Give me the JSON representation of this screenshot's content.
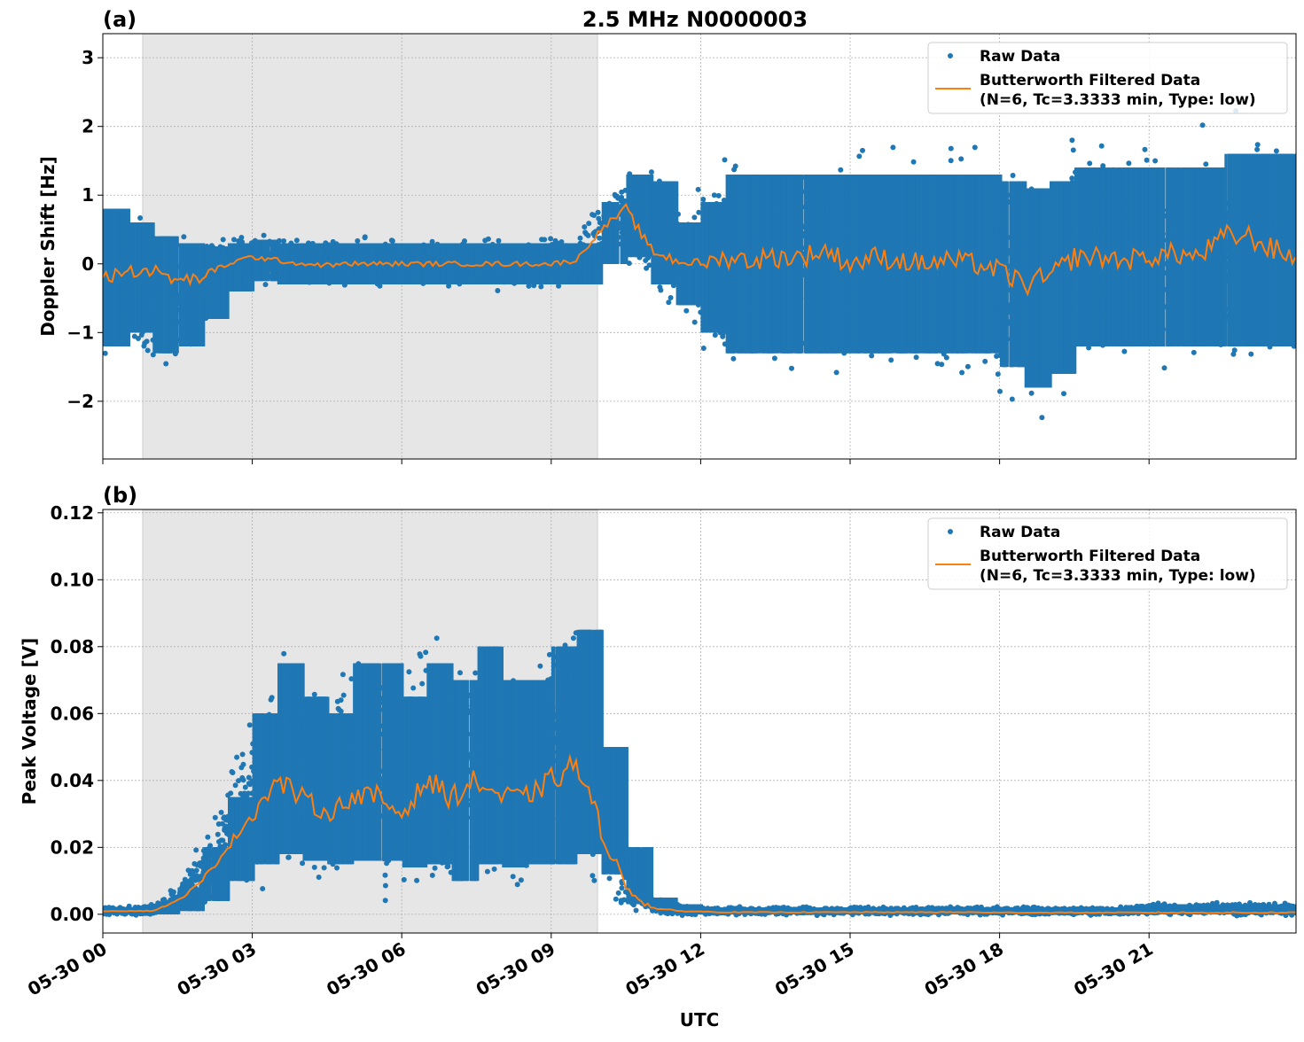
{
  "chart_data": [
    {
      "type": "scatter",
      "panel_label": "(a)",
      "title": "2.5 MHz N0000003",
      "xlabel": "",
      "ylabel": "Doppler Shift [Hz]",
      "xlim_hours": [
        0,
        23.95
      ],
      "ylim": [
        -2.84,
        3.35
      ],
      "yticks": [
        -2,
        -1,
        0,
        1,
        2,
        3
      ],
      "ytick_labels": [
        "−2",
        "−1",
        "0",
        "1",
        "2",
        "3"
      ],
      "grid": true,
      "shaded_interval_hours": [
        0.8,
        9.93
      ],
      "legend_position": "top-right",
      "legend": [
        "Raw Data",
        "Butterworth Filtered Data",
        "(N=6, Tc=3.3333 min, Type: low)"
      ],
      "x_hours": [
        0,
        0.5,
        1,
        1.5,
        2,
        2.5,
        3,
        3.5,
        4,
        4.5,
        5,
        5.5,
        6,
        6.5,
        7,
        7.5,
        8,
        8.5,
        9,
        9.5,
        10,
        10.5,
        11,
        11.5,
        12,
        12.5,
        13,
        13.5,
        14,
        14.5,
        15,
        15.5,
        16,
        16.5,
        17,
        17.5,
        18,
        18.5,
        19,
        19.5,
        20,
        20.5,
        21,
        21.5,
        22,
        22.5,
        23,
        23.5,
        24
      ],
      "series": [
        {
          "name": "Butterworth Filtered Data",
          "style": "line",
          "color": "#ff7f0e",
          "values": [
            -0.2,
            -0.1,
            -0.1,
            -0.25,
            -0.2,
            0,
            0.1,
            0.05,
            0,
            -0.02,
            0,
            0,
            0,
            0,
            0,
            0,
            0,
            0,
            0,
            0.05,
            0.5,
            0.8,
            0.2,
            0.05,
            0,
            0.1,
            0.05,
            0.1,
            0.1,
            0.2,
            0,
            0.1,
            0.05,
            0,
            0.05,
            0,
            -0.1,
            -0.3,
            -0.2,
            0.1,
            0.1,
            0.05,
            0.1,
            0.15,
            0.1,
            0.4,
            0.4,
            0.2,
            0.1
          ]
        },
        {
          "name": "Raw Data",
          "style": "points",
          "color": "#1f77b4",
          "band_low": [
            -1.2,
            -1,
            -1.3,
            -1.2,
            -0.8,
            -0.4,
            -0.25,
            -0.3,
            -0.3,
            -0.3,
            -0.3,
            -0.3,
            -0.3,
            -0.3,
            -0.3,
            -0.3,
            -0.3,
            -0.3,
            -0.3,
            -0.3,
            0,
            0.1,
            -0.3,
            -0.6,
            -1,
            -1.3,
            -1.3,
            -1.3,
            -1.3,
            -1.3,
            -1.3,
            -1.3,
            -1.3,
            -1.3,
            -1.3,
            -1.3,
            -1.5,
            -1.8,
            -1.6,
            -1.2,
            -1.2,
            -1.2,
            -1.2,
            -1.2,
            -1.2,
            -1.2,
            -1.2,
            -1.2,
            -1.2
          ],
          "band_high": [
            0.8,
            0.6,
            0.4,
            0.3,
            0.25,
            0.3,
            0.35,
            0.3,
            0.3,
            0.3,
            0.3,
            0.3,
            0.3,
            0.3,
            0.3,
            0.3,
            0.3,
            0.3,
            0.3,
            0.3,
            0.9,
            1.3,
            1.2,
            0.6,
            0.9,
            1.3,
            1.3,
            1.3,
            1.3,
            1.3,
            1.3,
            1.3,
            1.3,
            1.3,
            1.3,
            1.3,
            1.2,
            1.1,
            1.2,
            1.4,
            1.4,
            1.4,
            1.4,
            1.4,
            1.4,
            1.6,
            1.6,
            1.6,
            1.6
          ]
        }
      ]
    },
    {
      "type": "scatter",
      "panel_label": "(b)",
      "xlabel": "UTC",
      "ylabel": "Peak Voltage [V]",
      "xlim_hours": [
        0,
        23.95
      ],
      "ylim": [
        -0.0056,
        0.121
      ],
      "yticks": [
        0,
        0.02,
        0.04,
        0.06,
        0.08,
        0.1,
        0.12
      ],
      "ytick_labels": [
        "0.00",
        "0.02",
        "0.04",
        "0.06",
        "0.08",
        "0.10",
        "0.12"
      ],
      "xtick_hours": [
        0,
        3,
        6,
        9,
        12,
        15,
        18,
        21
      ],
      "xtick_labels": [
        "05-30 00",
        "05-30 03",
        "05-30 06",
        "05-30 09",
        "05-30 12",
        "05-30 15",
        "05-30 18",
        "05-30 21"
      ],
      "grid": true,
      "shaded_interval_hours": [
        0.8,
        9.93
      ],
      "legend_position": "top-right",
      "legend": [
        "Raw Data",
        "Butterworth Filtered Data",
        "(N=6, Tc=3.3333 min, Type: low)"
      ],
      "x_hours": [
        0,
        0.5,
        1,
        1.5,
        2,
        2.5,
        3,
        3.5,
        4,
        4.5,
        5,
        5.5,
        6,
        6.5,
        7,
        7.5,
        8,
        8.5,
        9,
        9.5,
        10,
        10.5,
        11,
        11.5,
        12,
        12.5,
        13,
        13.5,
        14,
        14.5,
        15,
        15.5,
        16,
        16.5,
        17,
        17.5,
        18,
        18.5,
        19,
        19.5,
        20,
        20.5,
        21,
        21.5,
        22,
        22.5,
        23,
        23.5,
        24
      ],
      "series": [
        {
          "name": "Butterworth Filtered Data",
          "style": "line",
          "color": "#ff7f0e",
          "values": [
            0.001,
            0.001,
            0.001,
            0.004,
            0.01,
            0.02,
            0.03,
            0.04,
            0.035,
            0.03,
            0.035,
            0.035,
            0.03,
            0.04,
            0.035,
            0.04,
            0.035,
            0.035,
            0.04,
            0.045,
            0.025,
            0.008,
            0.002,
            0.001,
            0.0008,
            0.0006,
            0.0006,
            0.0006,
            0.0006,
            0.0006,
            0.0006,
            0.0006,
            0.0006,
            0.0006,
            0.0006,
            0.0006,
            0.0005,
            0.0005,
            0.0005,
            0.0005,
            0.0005,
            0.0005,
            0.0005,
            0.0005,
            0.0005,
            0.0005,
            0.0005,
            0.0005,
            0.0005
          ]
        },
        {
          "name": "Raw Data",
          "style": "points",
          "color": "#1f77b4",
          "band_low": [
            0,
            0,
            0,
            0.001,
            0.004,
            0.01,
            0.015,
            0.018,
            0.016,
            0.015,
            0.016,
            0.016,
            0.014,
            0.015,
            0.01,
            0.015,
            0.014,
            0.015,
            0.015,
            0.018,
            0.012,
            0.003,
            0.001,
            0,
            0,
            0,
            0,
            0,
            0,
            0,
            0,
            0,
            0,
            0,
            0,
            0,
            0,
            0,
            0,
            0,
            0,
            0,
            0,
            0,
            0,
            0,
            0,
            0,
            0
          ],
          "band_high": [
            0.002,
            0.002,
            0.003,
            0.008,
            0.02,
            0.035,
            0.06,
            0.075,
            0.065,
            0.06,
            0.075,
            0.075,
            0.065,
            0.075,
            0.07,
            0.08,
            0.07,
            0.07,
            0.08,
            0.085,
            0.05,
            0.02,
            0.005,
            0.003,
            0.002,
            0.002,
            0.002,
            0.002,
            0.002,
            0.002,
            0.002,
            0.002,
            0.002,
            0.002,
            0.002,
            0.002,
            0.002,
            0.002,
            0.002,
            0.002,
            0.002,
            0.002,
            0.003,
            0.003,
            0.003,
            0.003,
            0.003,
            0.003,
            0.003
          ]
        }
      ]
    }
  ]
}
